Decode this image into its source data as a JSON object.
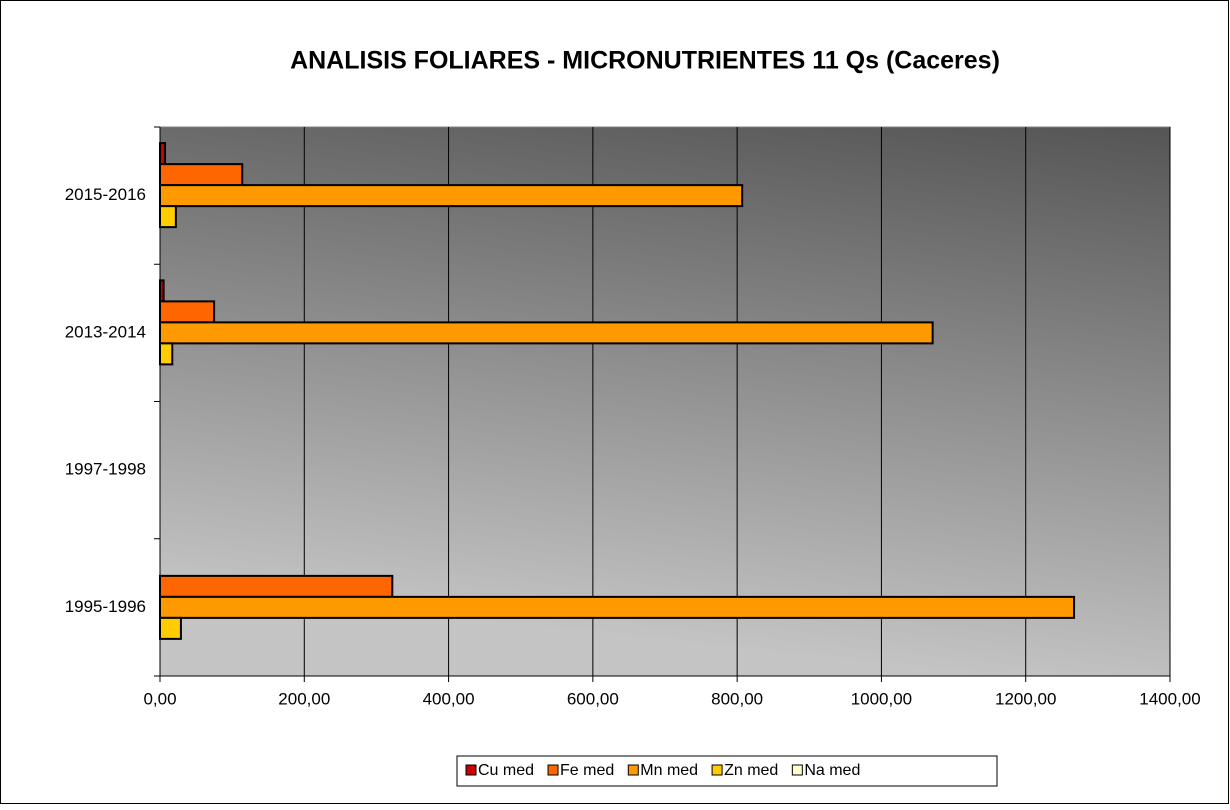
{
  "chart_data": {
    "type": "bar",
    "orientation": "horizontal",
    "title": "ANALISIS FOLIARES - MICRONUTRIENTES 11 Qs (Caceres)",
    "categories": [
      "1995-1996",
      "1997-1998",
      "2013-2014",
      "2015-2016"
    ],
    "series": [
      {
        "name": "Cu med",
        "color": "#cc0000",
        "values": [
          null,
          null,
          5,
          7
        ]
      },
      {
        "name": "Fe med",
        "color": "#ff6600",
        "values": [
          322,
          null,
          75,
          114
        ]
      },
      {
        "name": "Mn med",
        "color": "#ff9900",
        "values": [
          1267,
          null,
          1071,
          807
        ]
      },
      {
        "name": "Zn med",
        "color": "#ffcc00",
        "values": [
          29,
          null,
          17,
          22
        ]
      },
      {
        "name": "Na med",
        "color": "#ffffcc",
        "values": [
          0,
          null,
          0,
          0
        ]
      }
    ],
    "xlim": [
      0,
      1400
    ],
    "xticks": [
      {
        "value": 0,
        "label": "0,00"
      },
      {
        "value": 200,
        "label": "200,00"
      },
      {
        "value": 400,
        "label": "400,00"
      },
      {
        "value": 600,
        "label": "600,00"
      },
      {
        "value": 800,
        "label": "800,00"
      },
      {
        "value": 1000,
        "label": "1000,00"
      },
      {
        "value": 1200,
        "label": "1200,00"
      },
      {
        "value": 1400,
        "label": "1400,00"
      }
    ],
    "grid": true,
    "legend": "bottom"
  }
}
